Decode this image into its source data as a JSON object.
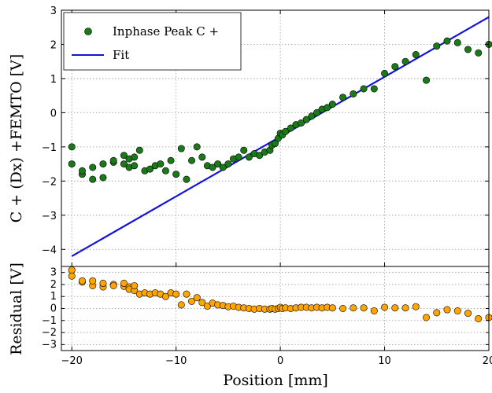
{
  "chart_data": [
    {
      "type": "scatter",
      "ylabel": "C + (Dx) +FEMTO [V]",
      "xlim": [
        -21,
        20
      ],
      "ylim": [
        -4.5,
        3
      ],
      "yticks": [
        3,
        2,
        1,
        0,
        -1,
        -2,
        -3,
        -4
      ],
      "grid": true,
      "legend_position": "top-left",
      "legend": [
        "Inphase Peak C +",
        "Fit"
      ],
      "colors": {
        "scatter": "#1a7a1a",
        "fit": "#1414d8"
      },
      "series": [
        {
          "name": "Inphase Peak C +",
          "kind": "scatter",
          "x": [
            -20,
            -20,
            -19,
            -19,
            -18,
            -18,
            -17,
            -17,
            -16,
            -16,
            -15,
            -15,
            -14.5,
            -14.5,
            -14,
            -14,
            -13.5,
            -13,
            -12.5,
            -12,
            -11.5,
            -11,
            -10.5,
            -10,
            -9.5,
            -9,
            -8.5,
            -8,
            -7.5,
            -7,
            -6.5,
            -6,
            -5.5,
            -5,
            -4.5,
            -4,
            -3.5,
            -3,
            -2.5,
            -2,
            -1.5,
            -1,
            -0.8,
            -0.5,
            -0.2,
            0,
            0.2,
            0.5,
            1,
            1.5,
            2,
            2.5,
            3,
            3.5,
            4,
            4.5,
            5,
            6,
            7,
            8,
            9,
            10,
            11,
            12,
            13,
            14,
            15,
            16,
            17,
            18,
            19,
            20
          ],
          "y": [
            -1.0,
            -1.5,
            -1.8,
            -1.7,
            -1.95,
            -1.6,
            -1.9,
            -1.5,
            -1.45,
            -1.4,
            -1.25,
            -1.5,
            -1.35,
            -1.6,
            -1.3,
            -1.55,
            -1.1,
            -1.7,
            -1.65,
            -1.55,
            -1.5,
            -1.7,
            -1.4,
            -1.8,
            -1.05,
            -1.95,
            -1.4,
            -1.0,
            -1.3,
            -1.55,
            -1.6,
            -1.5,
            -1.6,
            -1.5,
            -1.35,
            -1.3,
            -1.1,
            -1.3,
            -1.2,
            -1.25,
            -1.15,
            -1.1,
            -0.95,
            -0.9,
            -0.75,
            -0.6,
            -0.65,
            -0.55,
            -0.45,
            -0.35,
            -0.3,
            -0.2,
            -0.1,
            0.0,
            0.1,
            0.15,
            0.25,
            0.45,
            0.55,
            0.7,
            0.7,
            1.15,
            1.35,
            1.5,
            1.7,
            0.95,
            1.95,
            2.1,
            2.05,
            1.85,
            1.75,
            2.0
          ]
        },
        {
          "name": "Fit",
          "kind": "line",
          "x": [
            -20,
            20
          ],
          "y": [
            -4.2,
            2.8
          ]
        }
      ]
    },
    {
      "type": "scatter",
      "xlabel": "Position [mm]",
      "ylabel": "Residual [V]",
      "xlim": [
        -21,
        20
      ],
      "ylim": [
        -3.5,
        3.5
      ],
      "xticks": [
        -20,
        -10,
        0,
        10,
        20
      ],
      "yticks": [
        3,
        2,
        1,
        0,
        -1,
        -2,
        -3
      ],
      "grid": true,
      "colors": {
        "scatter": "#ffa500"
      },
      "series": [
        {
          "kind": "scatter",
          "x": [
            -20,
            -20,
            -19,
            -19,
            -18,
            -18,
            -17,
            -17,
            -16,
            -16,
            -15,
            -15,
            -14.5,
            -14.5,
            -14,
            -14,
            -13.5,
            -13,
            -12.5,
            -12,
            -11.5,
            -11,
            -10.5,
            -10,
            -9.5,
            -9,
            -8.5,
            -8,
            -7.5,
            -7,
            -6.5,
            -6,
            -5.5,
            -5,
            -4.5,
            -4,
            -3.5,
            -3,
            -2.5,
            -2,
            -1.5,
            -1,
            -0.8,
            -0.5,
            -0.2,
            0,
            0.2,
            0.5,
            1,
            1.5,
            2,
            2.5,
            3,
            3.5,
            4,
            4.5,
            5,
            6,
            7,
            8,
            9,
            10,
            11,
            12,
            13,
            14,
            15,
            16,
            17,
            18,
            19,
            20
          ],
          "y": [
            3.2,
            2.7,
            2.2,
            2.3,
            1.9,
            2.3,
            1.8,
            2.1,
            2.0,
            1.9,
            1.85,
            2.1,
            1.8,
            1.6,
            1.5,
            1.9,
            1.2,
            1.3,
            1.2,
            1.3,
            1.2,
            1.0,
            1.3,
            1.2,
            0.3,
            1.2,
            0.6,
            0.9,
            0.5,
            0.2,
            0.45,
            0.3,
            0.25,
            0.15,
            0.2,
            0.1,
            0.05,
            0.0,
            -0.05,
            0.0,
            -0.05,
            -0.05,
            0.0,
            -0.05,
            0.0,
            0.1,
            0.0,
            0.05,
            0.0,
            0.05,
            0.1,
            0.1,
            0.05,
            0.1,
            0.05,
            0.1,
            0.05,
            0.0,
            0.05,
            0.05,
            -0.2,
            0.1,
            0.05,
            0.05,
            0.15,
            -0.75,
            -0.35,
            -0.1,
            -0.2,
            -0.4,
            -0.85,
            -0.75
          ]
        }
      ]
    }
  ]
}
